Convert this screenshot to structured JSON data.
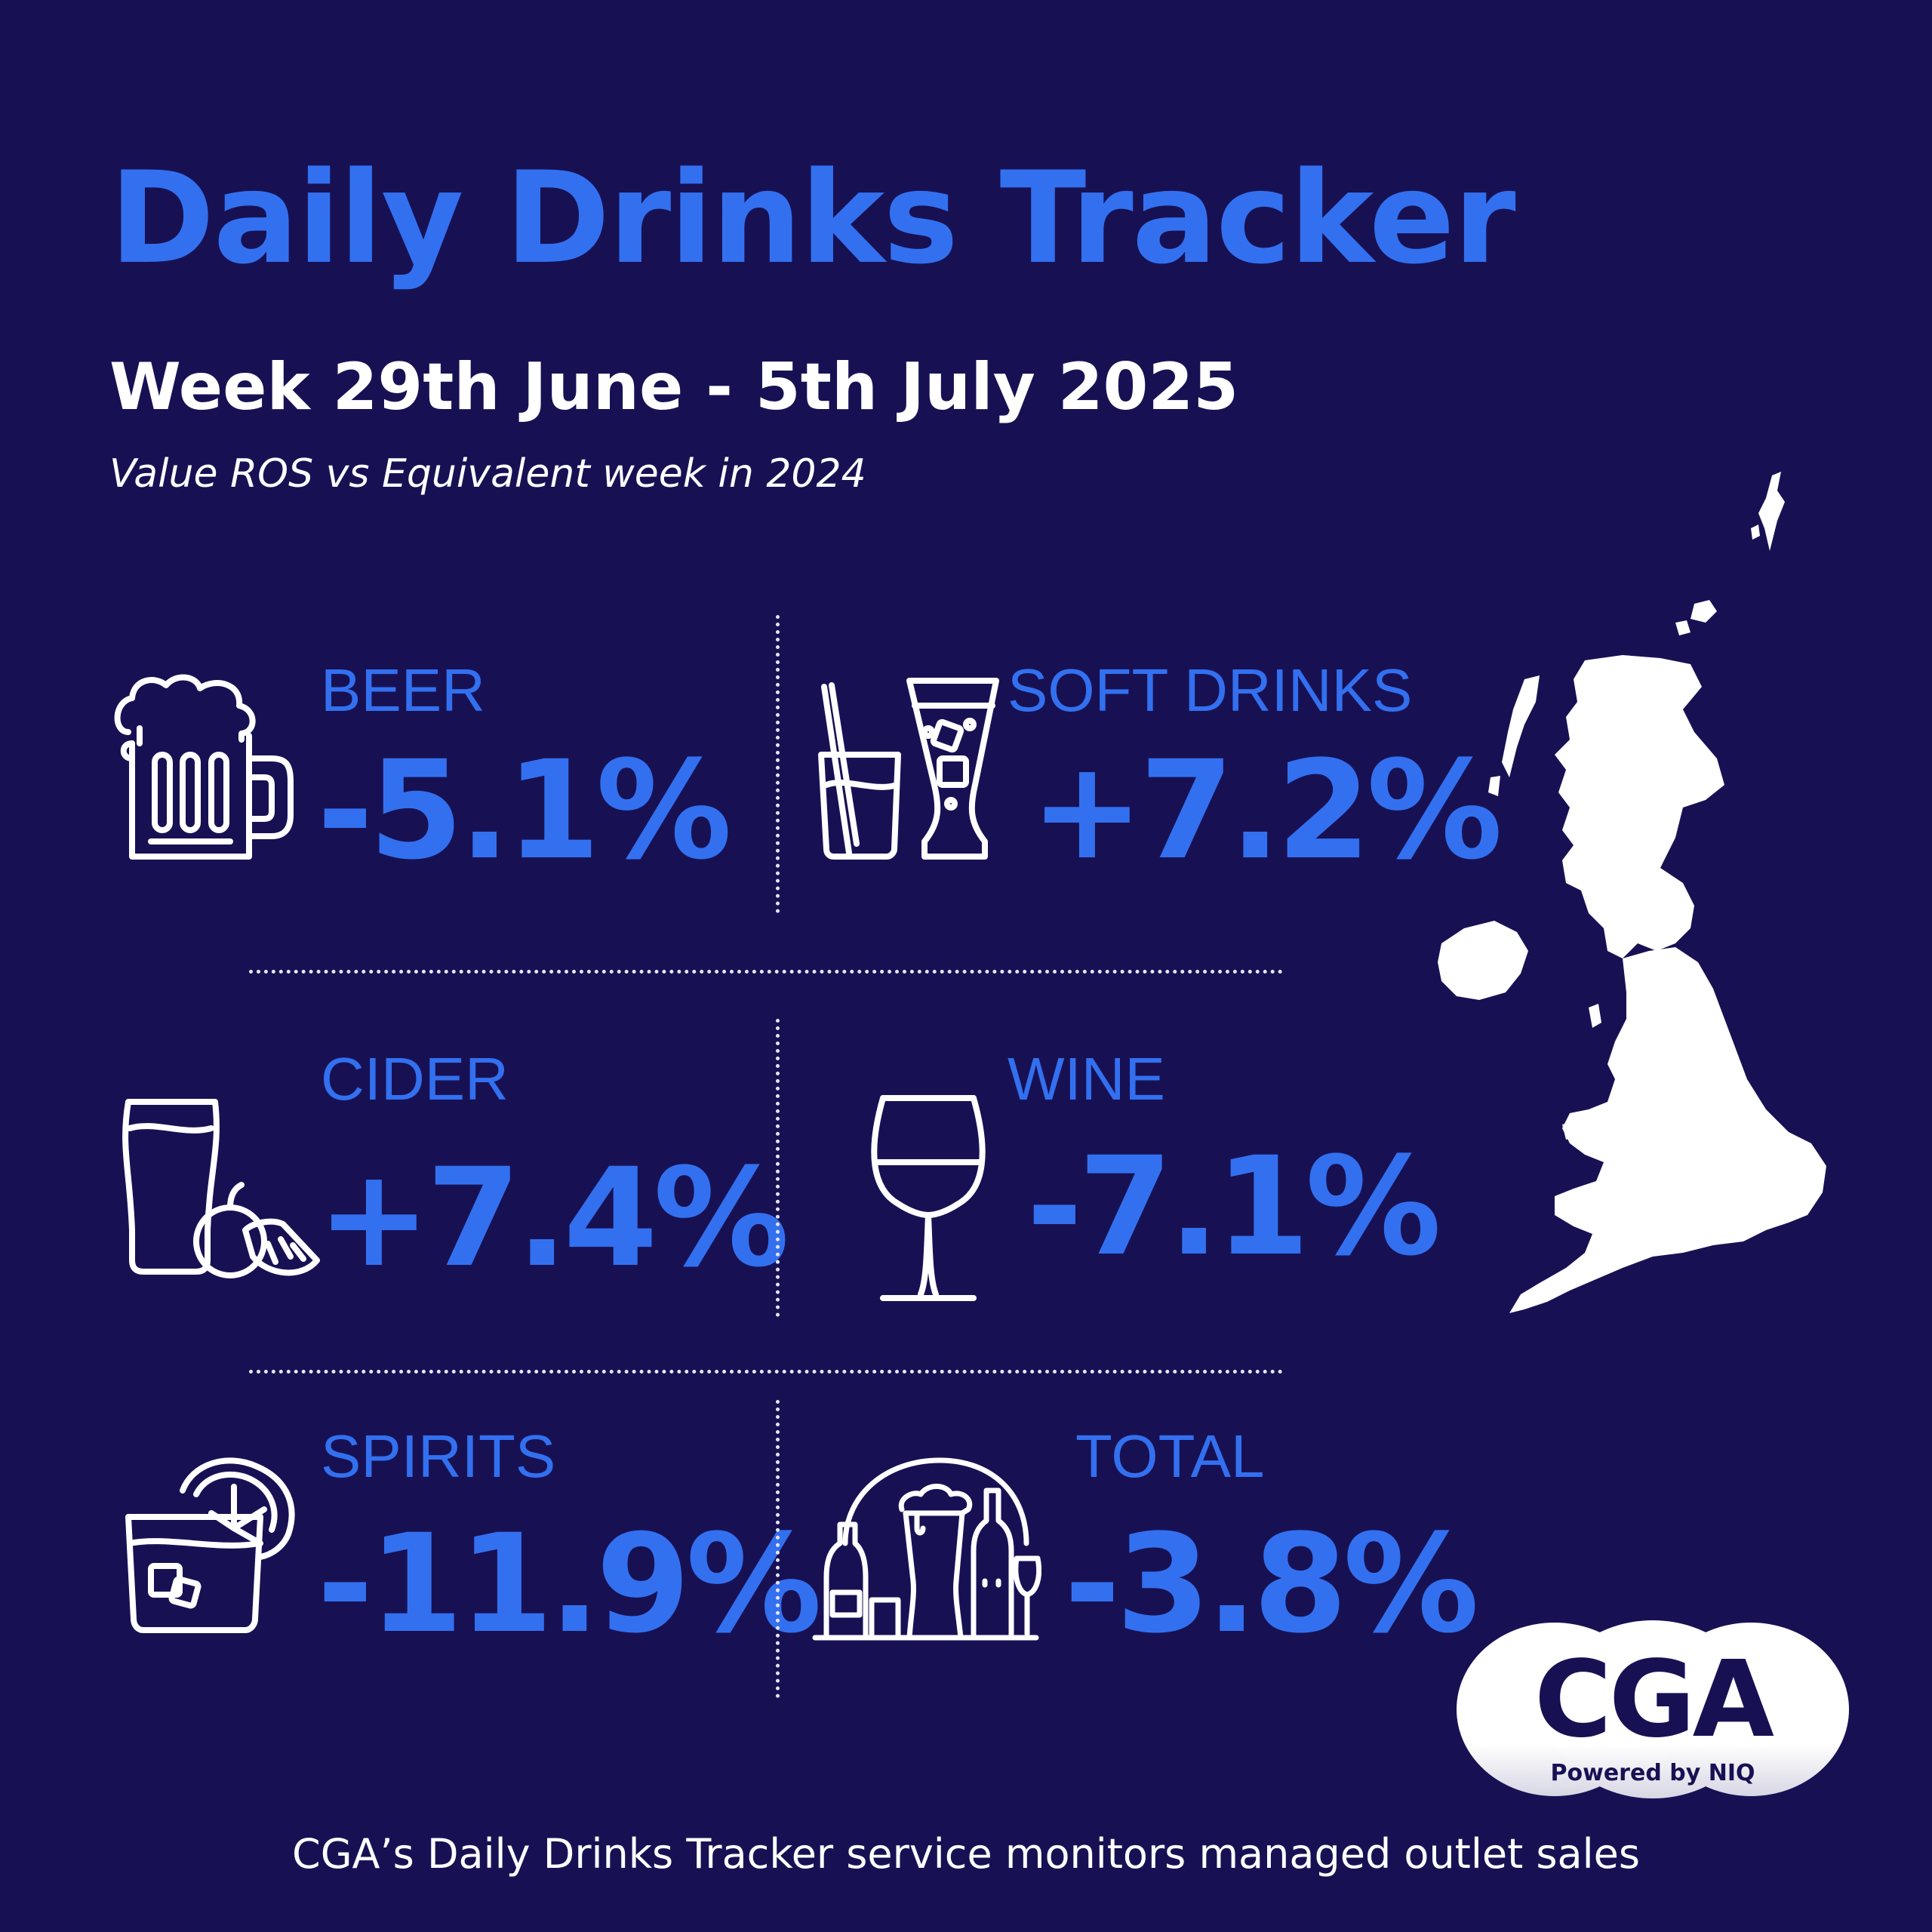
{
  "header": {
    "title": "Daily Drinks Tracker",
    "week": "Week 29th June - 5th July 2025",
    "subtitle": "Value ROS vs Equivalent week in 2024"
  },
  "categories": [
    {
      "label": "BEER",
      "value": "-5.1%",
      "icon": "beer-mug-icon"
    },
    {
      "label": "SOFT DRINKS",
      "value": "+7.2%",
      "icon": "soft-drinks-icon"
    },
    {
      "label": "CIDER",
      "value": "+7.4%",
      "icon": "cider-glass-icon"
    },
    {
      "label": "WINE",
      "value": "-7.1%",
      "icon": "wine-glass-icon"
    },
    {
      "label": "SPIRITS",
      "value": "-11.9%",
      "icon": "spirits-glass-icon"
    },
    {
      "label": "TOTAL",
      "value": "-3.8%",
      "icon": "drinks-collection-icon"
    }
  ],
  "map": {
    "icon": "uk-map-icon"
  },
  "logo": {
    "text": "CGA",
    "tagline": "Powered by NIQ"
  },
  "footer": {
    "text": "CGA’s Daily Drinks Tracker service monitors managed outlet sales"
  },
  "colors": {
    "background": "#171154",
    "accent": "#3370ef",
    "foreground": "#ffffff"
  }
}
